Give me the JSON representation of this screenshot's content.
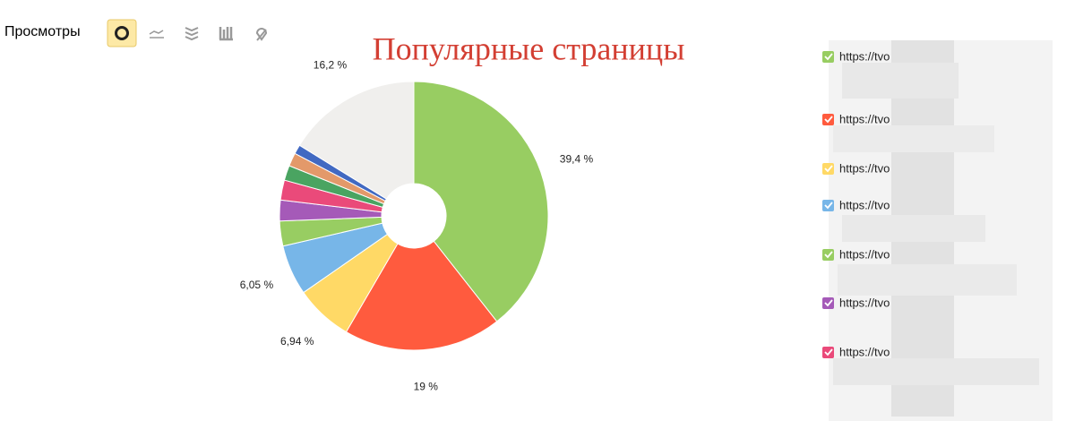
{
  "toolbar": {
    "label": "Просмотры"
  },
  "chart_data": {
    "type": "pie",
    "title": "Популярные страницы",
    "donut": true,
    "categories": [
      "https://tvo",
      "https://tvo",
      "https://tvo",
      "https://tvo",
      "https://tvo",
      "https://tvo",
      "https://tvo",
      null,
      null,
      null,
      null
    ],
    "values": [
      39.4,
      19,
      6.94,
      6.05,
      3.0,
      2.5,
      2.4,
      1.8,
      1.6,
      1.11,
      16.2
    ],
    "value_labels": [
      "39,4 %",
      "19 %",
      "6,94 %",
      "6,05 %",
      null,
      null,
      null,
      null,
      null,
      null,
      "16,2 %"
    ],
    "colors": [
      "#98cd62",
      "#ff5b3e",
      "#ffd966",
      "#77b6e8",
      "#98cd62",
      "#a55ab8",
      "#ea4a7a",
      "#4aa461",
      "#e3996a",
      "#4169c2",
      "#f0efed"
    ]
  }
}
